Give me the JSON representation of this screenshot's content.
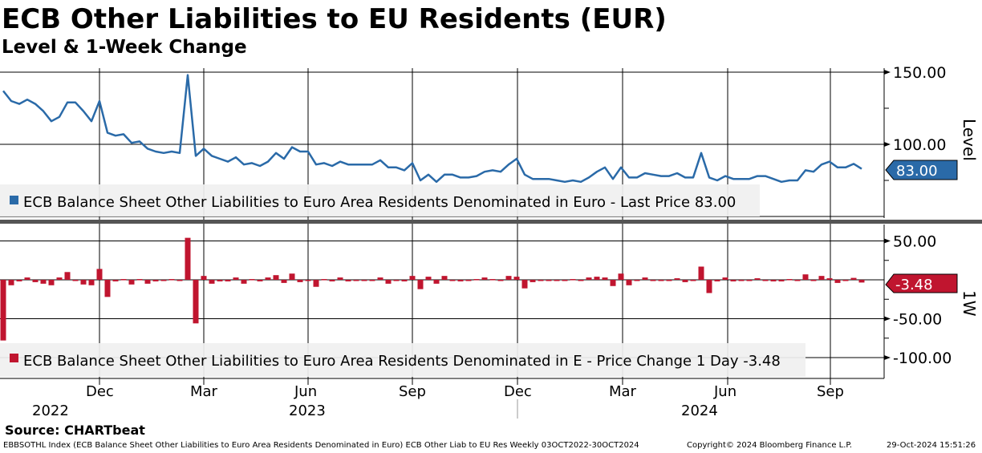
{
  "header": {
    "title": "ECB Other Liabilities to EU Residents (EUR)",
    "subtitle": "Level & 1-Week Change"
  },
  "footer": {
    "source": "Source: CHARTbeat",
    "description": "EBBSOTHL Index (ECB Balance Sheet Other Liabilities to Euro Area Residents Denominated in Euro) ECB Other Liab to EU Res  Weekly 03OCT2022-30OCT2024",
    "copyright": "Copyright© 2024 Bloomberg Finance L.P.",
    "timestamp": "29-Oct-2024 15:51:26"
  },
  "colors": {
    "level": "#2a6aa8",
    "change": "#c0152f",
    "legend_bg": "#f0f0f0"
  },
  "chart_data": [
    {
      "type": "line",
      "title": "Level",
      "ylabel": "Level",
      "ylim": [
        40,
        155
      ],
      "yticks": [
        "150.00",
        "100.00"
      ],
      "ytick_values": [
        150,
        100
      ],
      "legend": "ECB Balance Sheet Other Liabilities to Euro Area Residents Denominated in Euro - Last Price 83.00",
      "last_label": "83.00",
      "frequency": "weekly",
      "x_start": "2022-10-03",
      "values": [
        137,
        130,
        128,
        131,
        128,
        123,
        116,
        119,
        129,
        129,
        123,
        116,
        130,
        108,
        106,
        107,
        101,
        102,
        97,
        95,
        94,
        95,
        94,
        148,
        92,
        97,
        92,
        90,
        88,
        91,
        86,
        87,
        85,
        88,
        94,
        90,
        98,
        95,
        95,
        86,
        87,
        85,
        88,
        86,
        86,
        86,
        86,
        89,
        84,
        84,
        82,
        87,
        75,
        79,
        74,
        79,
        79,
        77,
        77,
        78,
        81,
        82,
        81,
        86,
        90,
        79,
        76,
        76,
        76,
        75,
        74,
        75,
        74,
        77,
        81,
        84,
        76,
        84,
        77,
        77,
        80,
        79,
        78,
        78,
        80,
        77,
        77,
        94,
        77,
        75,
        78,
        76,
        76,
        76,
        78,
        78,
        76,
        74,
        75,
        75,
        82,
        81,
        86,
        88,
        84,
        84,
        86.48,
        83.0
      ]
    },
    {
      "type": "bar",
      "title": "1-Week Change",
      "ylabel": "1W",
      "ylim": [
        -110,
        60
      ],
      "yticks": [
        "50.00",
        "-50.00",
        "-100.00"
      ],
      "ytick_values": [
        50,
        -50,
        -100
      ],
      "legend": "ECB Balance Sheet Other Liabilities to Euro Area Residents Denominated in E - Price Change 1 Day -3.48",
      "last_label": "-3.48",
      "values_note": "week-over-week change of level series"
    }
  ],
  "x_axis": {
    "months": [
      "Dec",
      "Mar",
      "Jun",
      "Sep",
      "Dec",
      "Mar",
      "Jun",
      "Sep"
    ],
    "years": [
      "2022",
      "2023",
      "2024"
    ]
  }
}
